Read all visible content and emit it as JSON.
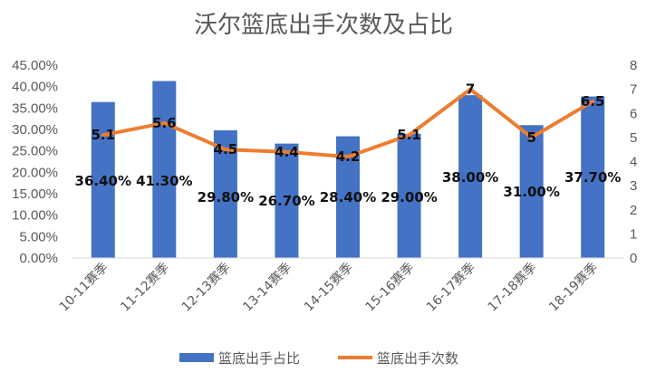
{
  "chart_data": {
    "type": "bar",
    "title": "沃尔篮底出手次数及占比",
    "categories": [
      "10-11赛季",
      "11-12赛季",
      "12-13赛季",
      "13-14赛季",
      "14-15赛季",
      "15-16赛季",
      "16-17赛季",
      "17-18赛季",
      "18-19赛季"
    ],
    "series": [
      {
        "name": "篮底出手占比",
        "type": "bar",
        "axis": "left",
        "color": "#4472C4",
        "values": [
          36.4,
          41.3,
          29.8,
          26.7,
          28.4,
          29.0,
          38.0,
          31.0,
          37.7
        ],
        "labels": [
          "36.40%",
          "41.30%",
          "29.80%",
          "26.70%",
          "28.40%",
          "29.00%",
          "38.00%",
          "31.00%",
          "37.70%"
        ]
      },
      {
        "name": "篮底出手次数",
        "type": "line",
        "axis": "right",
        "color": "#ED7D31",
        "values": [
          5.1,
          5.6,
          4.5,
          4.4,
          4.2,
          5.1,
          7,
          5,
          6.5
        ],
        "labels": [
          "5.1",
          "5.6",
          "4.5",
          "4.4",
          "4.2",
          "5.1",
          "7",
          "5",
          "6.5"
        ]
      }
    ],
    "y_left": {
      "range": [
        0,
        45
      ],
      "ticks": [
        0,
        5,
        10,
        15,
        20,
        25,
        30,
        35,
        40,
        45
      ],
      "tick_labels": [
        "0.00%",
        "5.00%",
        "10.00%",
        "15.00%",
        "20.00%",
        "25.00%",
        "30.00%",
        "35.00%",
        "40.00%",
        "45.00%"
      ]
    },
    "y_right": {
      "range": [
        0,
        8
      ],
      "ticks": [
        0,
        1,
        2,
        3,
        4,
        5,
        6,
        7,
        8
      ],
      "tick_labels": [
        "0",
        "1",
        "2",
        "3",
        "4",
        "5",
        "6",
        "7",
        "8"
      ]
    },
    "grid": false,
    "legend": {
      "position": "bottom",
      "entries": [
        "篮底出手占比",
        "篮底出手次数"
      ]
    }
  }
}
